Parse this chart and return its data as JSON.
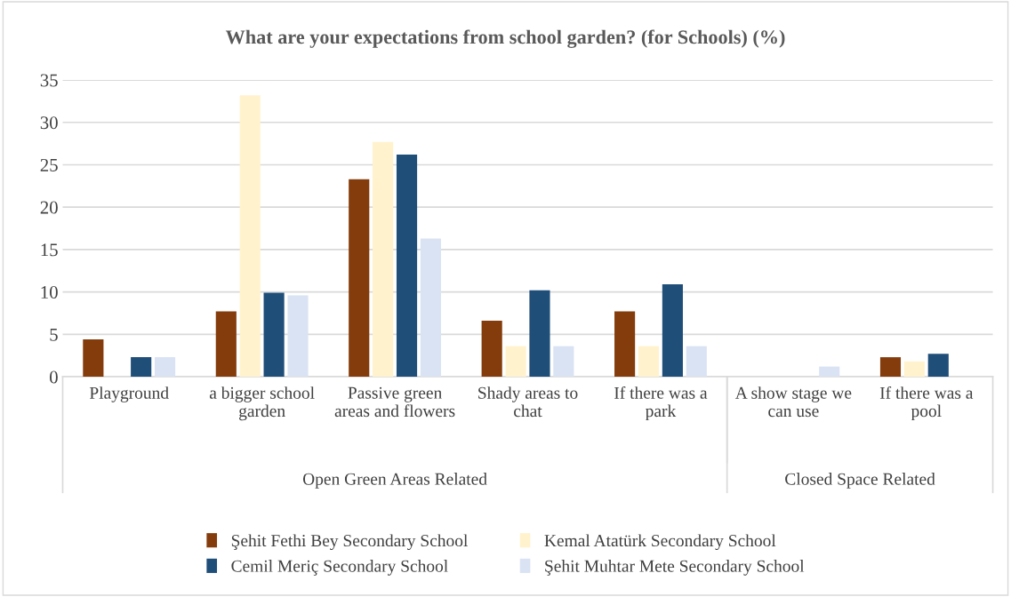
{
  "chart_data": {
    "type": "bar",
    "title": "What are your expectations from school garden? (for Schools) (%)",
    "categories": [
      "Playground",
      "a bigger school garden",
      "Passive green areas and flowers",
      "Shady areas to chat",
      "If there was a park",
      "A show stage we can use",
      "If there was a pool"
    ],
    "series": [
      {
        "name": "Şehit Fethi Bey Secondary School",
        "color": "#843c0c",
        "values": [
          4.4,
          7.7,
          23.3,
          6.6,
          7.7,
          0,
          2.3
        ]
      },
      {
        "name": "Kemal Atatürk Secondary School",
        "color": "#fff2cc",
        "values": [
          0,
          33.2,
          27.7,
          3.6,
          3.6,
          0,
          1.8
        ]
      },
      {
        "name": "Cemil Meriç Secondary School",
        "color": "#1f4e79",
        "values": [
          2.3,
          9.9,
          26.2,
          10.2,
          10.9,
          0,
          2.7
        ]
      },
      {
        "name": "Şehit Muhtar Mete Secondary School",
        "color": "#dae3f3",
        "values": [
          2.3,
          9.6,
          16.3,
          3.6,
          3.6,
          1.2,
          0
        ]
      }
    ],
    "annotations": [
      "Open Green Areas Related",
      "Closed Space Related"
    ],
    "ylim": [
      0,
      35
    ],
    "yticks": [
      0,
      5,
      10,
      15,
      20,
      25,
      30,
      35
    ],
    "grid": "y",
    "legend": "bottom"
  }
}
